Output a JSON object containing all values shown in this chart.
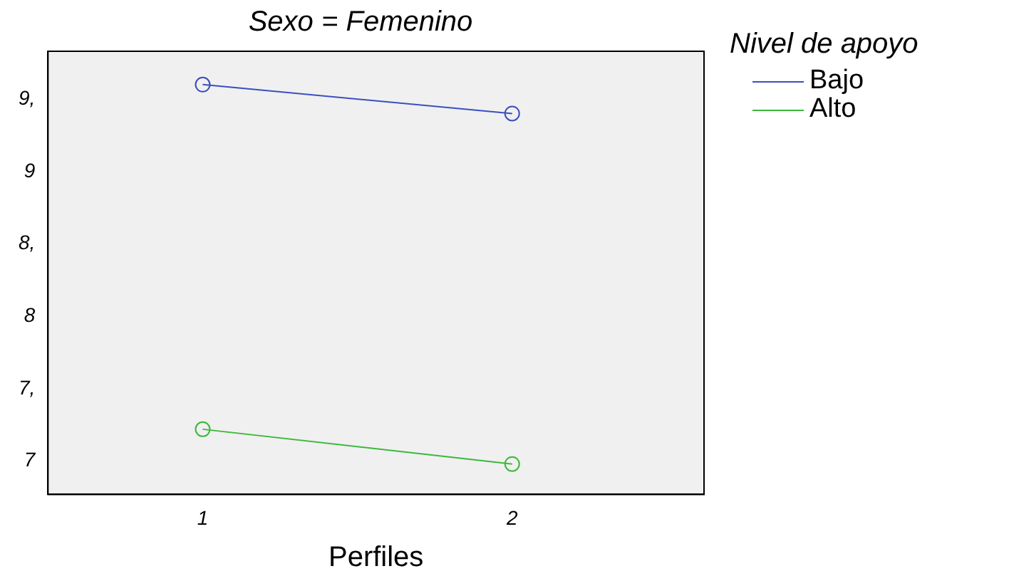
{
  "chart_data": {
    "type": "line",
    "title": "Sexo = Femenino",
    "xlabel": "Perfiles",
    "legend_title": "Nivel de apoyo",
    "x": [
      1,
      2
    ],
    "series": [
      {
        "name": "Bajo",
        "color": "#3a4fc0",
        "values": [
          9.6,
          9.4
        ]
      },
      {
        "name": "Alto",
        "color": "#3cb83c",
        "values": [
          7.22,
          6.98
        ]
      }
    ],
    "xlim": [
      0.5,
      2.62
    ],
    "xticks": [
      1,
      2
    ],
    "ylim": [
      6.77,
      9.83
    ],
    "yticks": [
      {
        "value": 7,
        "label": "7"
      },
      {
        "value": 7.5,
        "label": "7,"
      },
      {
        "value": 8,
        "label": "8"
      },
      {
        "value": 8.5,
        "label": "8,"
      },
      {
        "value": 9,
        "label": "9"
      },
      {
        "value": 9.5,
        "label": "9,"
      }
    ],
    "grid": false,
    "legend": "top right",
    "marker": "circle",
    "line_style": "solid"
  }
}
